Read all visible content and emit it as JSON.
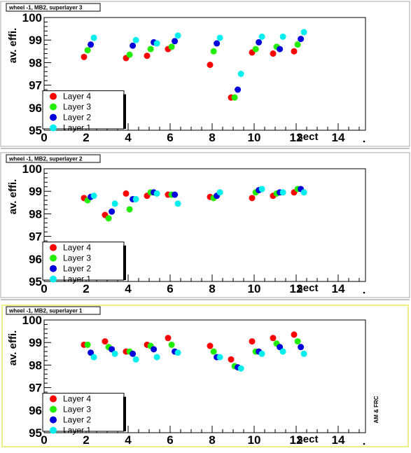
{
  "colors": {
    "layer4": "#ff0000",
    "layer3": "#22ee00",
    "layer2": "#0000dd",
    "layer1": "#00eeee",
    "panel_border_selected": "#eeee88",
    "panel_border": "#aaaaaa"
  },
  "credit": "AM & FRC",
  "chart_data": [
    {
      "type": "scatter",
      "title": "wheel -1, MB2, superlayer 3",
      "xlabel": "sect",
      "ylabel": "av. effi.",
      "xlim": [
        0,
        15.3
      ],
      "ylim": [
        95,
        100
      ],
      "x_tick_labels": [
        "0",
        "2",
        "4",
        "6",
        "8",
        "10",
        "12",
        "14"
      ],
      "y_tick_labels": [
        "95",
        "96",
        "97",
        "98",
        "99",
        "100"
      ],
      "legend": [
        "Layer 4",
        "Layer 3",
        "Layer 2",
        "Layer 1"
      ],
      "series": [
        {
          "name": "Layer 4",
          "x": [
            2,
            4,
            5,
            6,
            8,
            9,
            10,
            11,
            12
          ],
          "y": [
            98.25,
            98.2,
            98.3,
            98.6,
            97.9,
            96.45,
            98.45,
            98.4,
            98.5
          ]
        },
        {
          "name": "Layer 3",
          "x": [
            2,
            4,
            5,
            6,
            8,
            9,
            10,
            11,
            12
          ],
          "y": [
            98.55,
            98.35,
            98.6,
            98.7,
            98.5,
            96.45,
            98.6,
            98.7,
            98.8
          ]
        },
        {
          "name": "Layer 2",
          "x": [
            2,
            4,
            5,
            6,
            8,
            9,
            10,
            11,
            12
          ],
          "y": [
            98.8,
            98.75,
            98.9,
            98.95,
            98.85,
            96.8,
            98.9,
            98.6,
            99.05
          ]
        },
        {
          "name": "Layer 1",
          "x": [
            2,
            4,
            5,
            6,
            8,
            9,
            10,
            11,
            12
          ],
          "y": [
            99.1,
            99.0,
            98.85,
            99.2,
            99.1,
            97.5,
            99.15,
            99.15,
            99.35
          ]
        }
      ]
    },
    {
      "type": "scatter",
      "title": "wheel -1, MB2, superlayer 2",
      "xlabel": "sect",
      "ylabel": "av. effi.",
      "xlim": [
        0,
        15.3
      ],
      "ylim": [
        95,
        100
      ],
      "x_tick_labels": [
        "0",
        "2",
        "4",
        "6",
        "8",
        "10",
        "12",
        "14"
      ],
      "y_tick_labels": [
        "95",
        "96",
        "97",
        "98",
        "99",
        "100"
      ],
      "legend": [
        "Layer 4",
        "Layer 3",
        "Layer 2",
        "Layer 1"
      ],
      "series": [
        {
          "name": "Layer 4",
          "x": [
            2,
            3,
            4,
            5,
            6,
            8,
            10,
            11,
            12
          ],
          "y": [
            98.7,
            97.95,
            98.9,
            98.8,
            98.85,
            98.75,
            98.7,
            98.8,
            98.95
          ]
        },
        {
          "name": "Layer 3",
          "x": [
            2,
            3,
            4,
            5,
            6,
            8,
            10,
            11,
            12
          ],
          "y": [
            98.6,
            97.8,
            98.2,
            98.95,
            98.85,
            98.7,
            98.95,
            98.9,
            99.1
          ]
        },
        {
          "name": "Layer 2",
          "x": [
            2,
            3,
            4,
            5,
            6,
            8,
            10,
            11,
            12
          ],
          "y": [
            98.75,
            98.1,
            98.65,
            98.95,
            98.85,
            98.8,
            99.05,
            98.95,
            99.1
          ]
        },
        {
          "name": "Layer 1",
          "x": [
            2,
            3,
            4,
            5,
            6,
            8,
            10,
            11,
            12
          ],
          "y": [
            98.8,
            98.45,
            98.65,
            98.9,
            98.45,
            98.95,
            99.1,
            98.95,
            98.95
          ]
        }
      ]
    },
    {
      "type": "scatter",
      "title": "wheel -1, MB2, superlayer 1",
      "xlabel": "sect",
      "ylabel": "av. effi.",
      "xlim": [
        0,
        15.3
      ],
      "ylim": [
        95,
        100
      ],
      "x_tick_labels": [
        "0",
        "2",
        "4",
        "6",
        "8",
        "10",
        "12",
        "14"
      ],
      "y_tick_labels": [
        "95",
        "96",
        "97",
        "98",
        "99",
        "100"
      ],
      "legend": [
        "Layer 4",
        "Layer 3",
        "Layer 2",
        "Layer 1"
      ],
      "series": [
        {
          "name": "Layer 4",
          "x": [
            2,
            3,
            4,
            5,
            6,
            8,
            9,
            10,
            11,
            12
          ],
          "y": [
            98.9,
            99.05,
            98.6,
            98.9,
            99.2,
            98.85,
            98.25,
            99.05,
            99.2,
            99.35
          ]
        },
        {
          "name": "Layer 3",
          "x": [
            2,
            3,
            4,
            5,
            6,
            8,
            9,
            10,
            11,
            12
          ],
          "y": [
            98.9,
            98.8,
            98.6,
            98.85,
            98.9,
            98.6,
            97.95,
            98.6,
            98.95,
            99.05
          ]
        },
        {
          "name": "Layer 2",
          "x": [
            2,
            3,
            4,
            5,
            6,
            8,
            9,
            10,
            11,
            12
          ],
          "y": [
            98.55,
            98.7,
            98.5,
            98.7,
            98.6,
            98.35,
            97.9,
            98.6,
            98.8,
            98.8
          ]
        },
        {
          "name": "Layer 1",
          "x": [
            2,
            3,
            4,
            5,
            6,
            8,
            9,
            10,
            11,
            12
          ],
          "y": [
            98.35,
            98.5,
            98.25,
            98.35,
            98.55,
            98.35,
            97.85,
            98.5,
            98.6,
            98.5
          ]
        }
      ]
    }
  ]
}
